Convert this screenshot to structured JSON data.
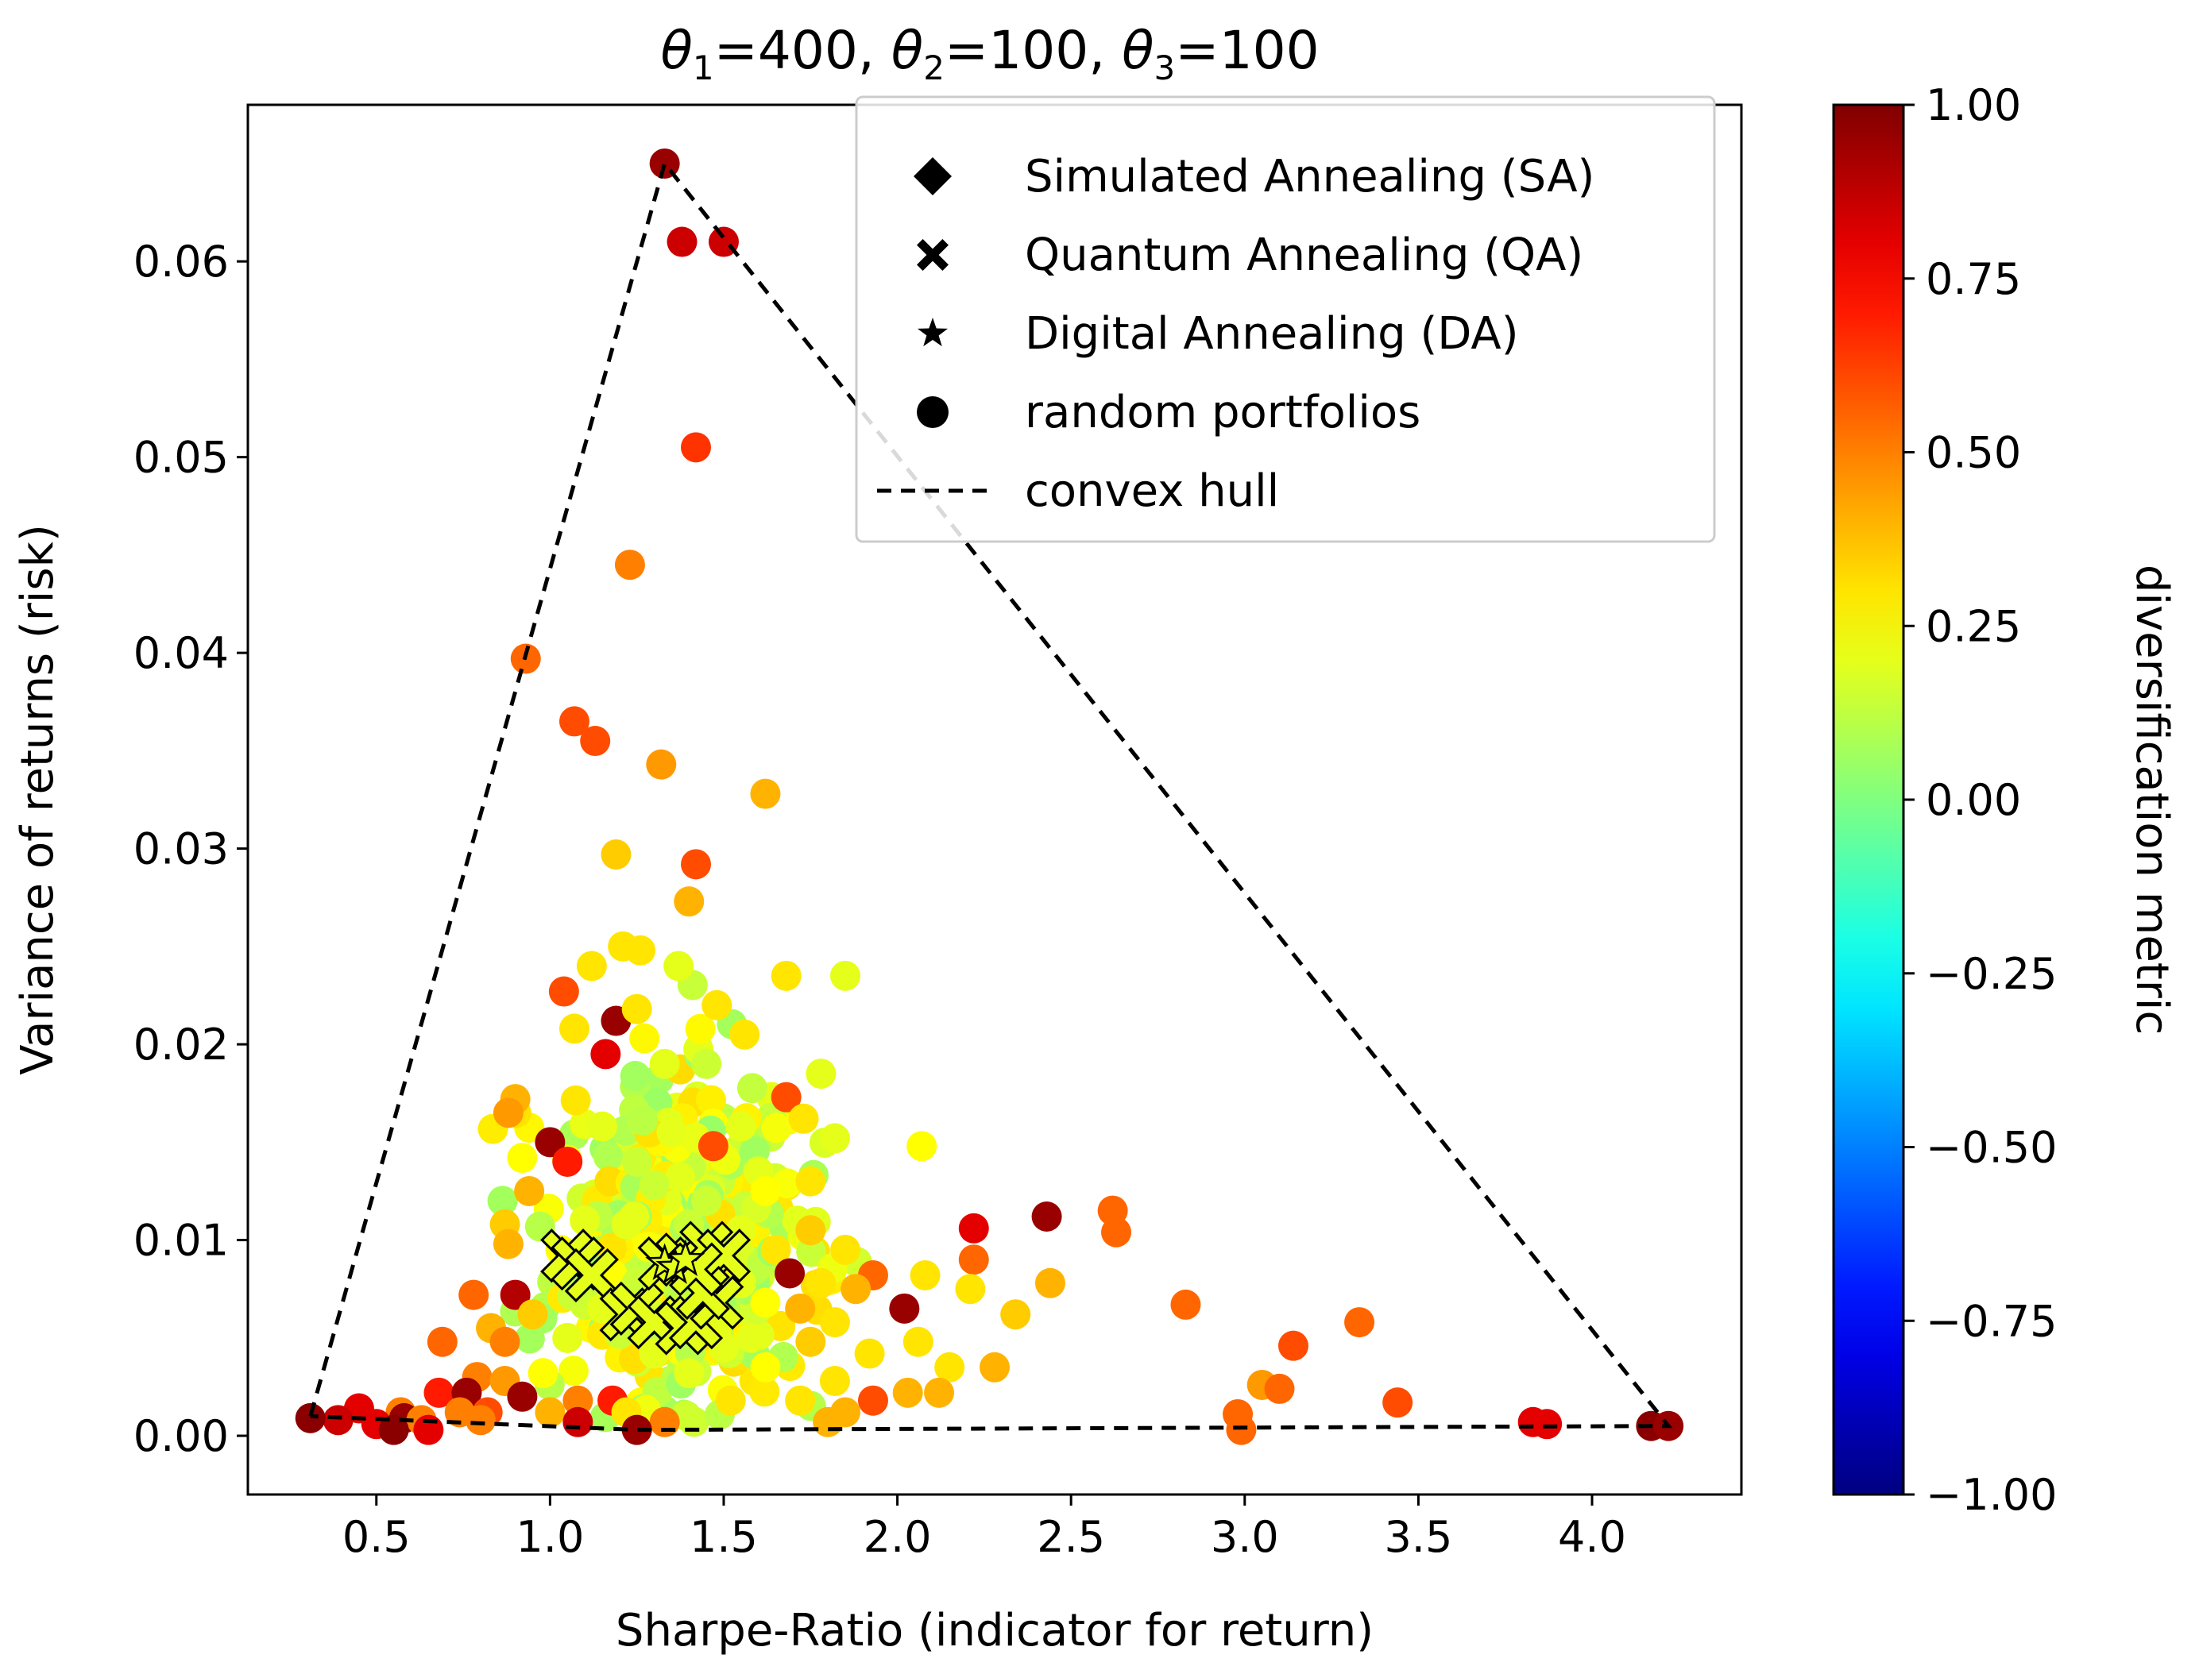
{
  "chart_data": {
    "type": "scatter",
    "title_parts": [
      "θ",
      "1",
      "=400, ",
      "θ",
      "2",
      "=100, ",
      "θ",
      "3",
      "=100"
    ],
    "xlabel": "Sharpe-Ratio (indicator for return)",
    "ylabel": "Variance of returns (risk)",
    "xlim": [
      0.13,
      4.43
    ],
    "ylim": [
      -0.003,
      0.068
    ],
    "xticks": [
      0.5,
      1.0,
      1.5,
      2.0,
      2.5,
      3.0,
      3.5,
      4.0
    ],
    "xtick_labels": [
      "0.5",
      "1.0",
      "1.5",
      "2.0",
      "2.5",
      "3.0",
      "3.5",
      "4.0"
    ],
    "yticks": [
      0.0,
      0.01,
      0.02,
      0.03,
      0.04,
      0.05,
      0.06
    ],
    "ytick_labels": [
      "0.00",
      "0.01",
      "0.02",
      "0.03",
      "0.04",
      "0.05",
      "0.06"
    ],
    "colorbar": {
      "label": "diversification metric",
      "colormap": "jet",
      "range": [
        -1.0,
        1.0
      ],
      "ticks": [
        1.0,
        0.75,
        0.5,
        0.25,
        0.0,
        -0.25,
        -0.5,
        -0.75,
        -1.0
      ],
      "tick_labels": [
        "1.00",
        "0.75",
        "0.50",
        "0.25",
        "0.00",
        "−0.25",
        "−0.50",
        "−0.75",
        "−1.00"
      ]
    },
    "legend": {
      "position": "upper-right",
      "entries": [
        {
          "marker": "diamond",
          "label": "Simulated Annealing (SA)"
        },
        {
          "marker": "x-filled",
          "label": "Quantum Annealing (QA)"
        },
        {
          "marker": "star",
          "label": "Digital Annealing (DA)"
        },
        {
          "marker": "circle",
          "label": "random portfolios"
        },
        {
          "marker": "dashed-line",
          "label": "convex hull"
        }
      ]
    },
    "convex_hull": [
      [
        0.31,
        0.001
      ],
      [
        1.33,
        0.065
      ],
      [
        4.22,
        0.0005
      ],
      [
        1.25,
        0.0003
      ],
      [
        0.31,
        0.001
      ]
    ],
    "random_portfolios": [
      [
        1.33,
        0.065,
        0.95
      ],
      [
        1.38,
        0.061,
        0.85
      ],
      [
        1.5,
        0.061,
        0.85
      ],
      [
        1.42,
        0.0505,
        0.65
      ],
      [
        1.23,
        0.0445,
        0.5
      ],
      [
        0.93,
        0.0397,
        0.55
      ],
      [
        1.07,
        0.0365,
        0.6
      ],
      [
        1.13,
        0.0355,
        0.6
      ],
      [
        1.32,
        0.0343,
        0.45
      ],
      [
        1.62,
        0.0328,
        0.4
      ],
      [
        1.19,
        0.0297,
        0.35
      ],
      [
        1.42,
        0.0292,
        0.6
      ],
      [
        1.4,
        0.0273,
        0.4
      ],
      [
        1.21,
        0.025,
        0.3
      ],
      [
        1.26,
        0.0248,
        0.3
      ],
      [
        1.12,
        0.024,
        0.3
      ],
      [
        1.37,
        0.024,
        0.2
      ],
      [
        1.85,
        0.0235,
        0.2
      ],
      [
        1.68,
        0.0235,
        0.3
      ],
      [
        1.04,
        0.0227,
        0.6
      ],
      [
        1.19,
        0.0212,
        0.95
      ],
      [
        1.25,
        0.0218,
        0.3
      ],
      [
        1.48,
        0.022,
        0.3
      ],
      [
        1.56,
        0.0205,
        0.3
      ],
      [
        1.16,
        0.0195,
        0.8
      ],
      [
        1.07,
        0.0208,
        0.3
      ],
      [
        1.33,
        0.019,
        0.2
      ],
      [
        1.45,
        0.019,
        0.15
      ],
      [
        1.78,
        0.0185,
        0.2
      ],
      [
        0.9,
        0.0172,
        0.4
      ],
      [
        1.68,
        0.0173,
        0.6
      ],
      [
        0.88,
        0.0165,
        0.45
      ],
      [
        1.73,
        0.0162,
        0.3
      ],
      [
        1.0,
        0.015,
        0.95
      ],
      [
        1.47,
        0.0148,
        0.6
      ],
      [
        1.82,
        0.0152,
        0.2
      ],
      [
        2.07,
        0.0148,
        0.25
      ],
      [
        0.92,
        0.0142,
        0.25
      ],
      [
        1.05,
        0.014,
        0.7
      ],
      [
        1.15,
        0.0158,
        0.2
      ],
      [
        1.35,
        0.0155,
        0.2
      ],
      [
        1.55,
        0.0158,
        0.2
      ],
      [
        1.25,
        0.014,
        0.15
      ],
      [
        1.6,
        0.0135,
        0.2
      ],
      [
        0.94,
        0.0125,
        0.4
      ],
      [
        1.3,
        0.0128,
        0.15
      ],
      [
        1.45,
        0.012,
        0.15
      ],
      [
        1.62,
        0.0125,
        0.25
      ],
      [
        1.75,
        0.013,
        0.3
      ],
      [
        2.62,
        0.0115,
        0.55
      ],
      [
        2.63,
        0.0104,
        0.55
      ],
      [
        2.43,
        0.0112,
        0.95
      ],
      [
        2.22,
        0.0106,
        0.8
      ],
      [
        0.87,
        0.0108,
        0.35
      ],
      [
        1.1,
        0.011,
        0.2
      ],
      [
        1.22,
        0.0108,
        0.2
      ],
      [
        1.4,
        0.0108,
        0.15
      ],
      [
        1.55,
        0.0105,
        0.2
      ],
      [
        1.75,
        0.0105,
        0.35
      ],
      [
        0.88,
        0.0098,
        0.4
      ],
      [
        1.03,
        0.0095,
        0.25
      ],
      [
        1.65,
        0.0095,
        0.3
      ],
      [
        1.85,
        0.0095,
        0.3
      ],
      [
        2.22,
        0.009,
        0.55
      ],
      [
        0.9,
        0.0072,
        0.9
      ],
      [
        0.78,
        0.0072,
        0.55
      ],
      [
        1.69,
        0.0083,
        0.95
      ],
      [
        1.93,
        0.0082,
        0.55
      ],
      [
        2.08,
        0.0082,
        0.3
      ],
      [
        2.21,
        0.0075,
        0.3
      ],
      [
        2.44,
        0.0078,
        0.4
      ],
      [
        1.88,
        0.0075,
        0.4
      ],
      [
        1.78,
        0.0078,
        0.3
      ],
      [
        1.55,
        0.0078,
        0.2
      ],
      [
        1.25,
        0.0078,
        0.15
      ],
      [
        0.95,
        0.0062,
        0.35
      ],
      [
        1.15,
        0.0065,
        0.2
      ],
      [
        1.38,
        0.0065,
        0.15
      ],
      [
        1.62,
        0.0068,
        0.25
      ],
      [
        1.72,
        0.0065,
        0.4
      ],
      [
        2.02,
        0.0065,
        0.95
      ],
      [
        2.34,
        0.0062,
        0.35
      ],
      [
        2.83,
        0.0067,
        0.55
      ],
      [
        1.82,
        0.0058,
        0.3
      ],
      [
        1.48,
        0.0055,
        0.2
      ],
      [
        0.83,
        0.0055,
        0.4
      ],
      [
        0.69,
        0.0048,
        0.55
      ],
      [
        0.87,
        0.0048,
        0.5
      ],
      [
        1.05,
        0.005,
        0.2
      ],
      [
        1.2,
        0.0052,
        0.15
      ],
      [
        1.58,
        0.005,
        0.2
      ],
      [
        1.75,
        0.0048,
        0.35
      ],
      [
        2.06,
        0.0048,
        0.3
      ],
      [
        3.33,
        0.0058,
        0.55
      ],
      [
        3.14,
        0.0046,
        0.6
      ],
      [
        1.5,
        0.0045,
        0.2
      ],
      [
        1.3,
        0.0042,
        0.2
      ],
      [
        1.92,
        0.0042,
        0.3
      ],
      [
        2.28,
        0.0035,
        0.4
      ],
      [
        2.15,
        0.0035,
        0.3
      ],
      [
        1.62,
        0.0035,
        0.25
      ],
      [
        0.98,
        0.0032,
        0.25
      ],
      [
        1.4,
        0.0032,
        0.2
      ],
      [
        0.79,
        0.003,
        0.5
      ],
      [
        0.87,
        0.0028,
        0.45
      ],
      [
        1.82,
        0.0028,
        0.3
      ],
      [
        3.05,
        0.0026,
        0.45
      ],
      [
        3.1,
        0.0024,
        0.55
      ],
      [
        2.03,
        0.0022,
        0.4
      ],
      [
        2.12,
        0.0022,
        0.4
      ],
      [
        0.68,
        0.0022,
        0.7
      ],
      [
        0.76,
        0.0022,
        0.95
      ],
      [
        0.92,
        0.002,
        0.95
      ],
      [
        1.08,
        0.0018,
        0.5
      ],
      [
        1.18,
        0.0018,
        0.7
      ],
      [
        1.52,
        0.0018,
        0.3
      ],
      [
        1.72,
        0.0018,
        0.3
      ],
      [
        1.93,
        0.0018,
        0.6
      ],
      [
        3.44,
        0.0017,
        0.6
      ],
      [
        0.45,
        0.0014,
        0.8
      ],
      [
        0.57,
        0.0012,
        0.5
      ],
      [
        0.74,
        0.0012,
        0.5
      ],
      [
        0.82,
        0.0012,
        0.6
      ],
      [
        1.0,
        0.0012,
        0.4
      ],
      [
        1.22,
        0.0012,
        0.3
      ],
      [
        1.85,
        0.0012,
        0.4
      ],
      [
        2.98,
        0.0011,
        0.55
      ],
      [
        0.39,
        0.0008,
        0.85
      ],
      [
        0.31,
        0.0009,
        0.98
      ],
      [
        0.58,
        0.0009,
        0.95
      ],
      [
        0.63,
        0.0008,
        0.5
      ],
      [
        0.8,
        0.0008,
        0.5
      ],
      [
        1.08,
        0.0007,
        0.85
      ],
      [
        1.33,
        0.0007,
        0.5
      ],
      [
        1.8,
        0.0007,
        0.4
      ],
      [
        0.5,
        0.0006,
        0.8
      ],
      [
        3.83,
        0.0007,
        0.8
      ],
      [
        3.87,
        0.0006,
        0.8
      ],
      [
        4.17,
        0.0005,
        0.98
      ],
      [
        4.22,
        0.0005,
        0.95
      ],
      [
        0.55,
        0.0003,
        0.98
      ],
      [
        0.65,
        0.0003,
        0.8
      ],
      [
        1.25,
        0.0003,
        0.95
      ],
      [
        2.99,
        0.0003,
        0.55
      ]
    ],
    "dense_cluster": {
      "center": [
        1.38,
        0.01
      ],
      "spread": [
        0.33,
        0.0045
      ],
      "count": 420,
      "value_range": [
        0.05,
        0.32
      ]
    },
    "quantum_annealing": [
      [
        1.05,
        0.0092,
        0.2
      ],
      [
        1.08,
        0.0088,
        0.2
      ],
      [
        1.12,
        0.0082,
        0.2
      ],
      [
        1.22,
        0.0062,
        0.2
      ],
      [
        1.25,
        0.0065,
        0.2
      ],
      [
        1.3,
        0.0058,
        0.2
      ],
      [
        1.38,
        0.0055,
        0.2
      ],
      [
        1.42,
        0.0058,
        0.2
      ],
      [
        1.33,
        0.0088,
        0.2
      ],
      [
        1.38,
        0.009,
        0.2
      ],
      [
        1.45,
        0.0096,
        0.2
      ],
      [
        1.5,
        0.0092,
        0.2
      ],
      [
        1.48,
        0.0068,
        0.2
      ],
      [
        1.44,
        0.0073,
        0.2
      ],
      [
        1.42,
        0.0085,
        0.2
      ]
    ],
    "digital_annealing": [
      [
        1.33,
        0.0088,
        0.2
      ],
      [
        1.36,
        0.0086,
        0.2
      ],
      [
        1.39,
        0.009,
        0.2
      ]
    ]
  }
}
